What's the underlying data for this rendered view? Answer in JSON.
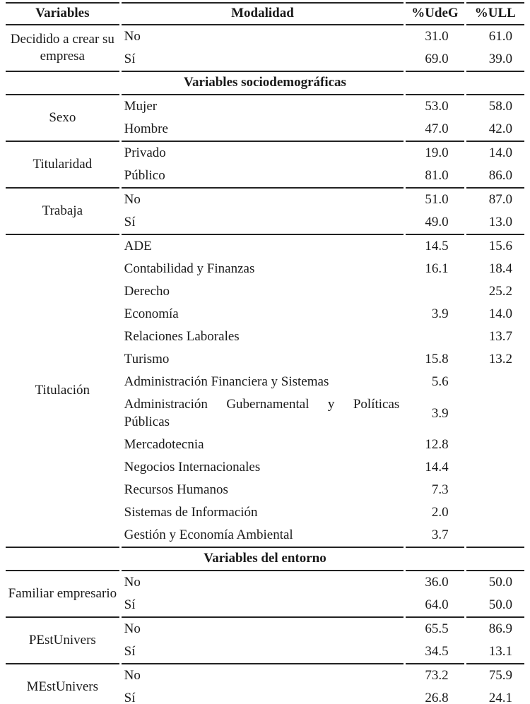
{
  "page": {
    "background": "#ffffff",
    "text_color": "#1a1a1a",
    "rule_color": "#222222"
  },
  "table": {
    "columns": [
      {
        "key": "variables",
        "label": "Variables"
      },
      {
        "key": "modalidad",
        "label": "Modalidad"
      },
      {
        "key": "udeg",
        "label": "%UdeG"
      },
      {
        "key": "ull",
        "label": "%ULL"
      }
    ],
    "sections": [
      {
        "header": null,
        "groups": [
          {
            "variable": "Decidido a crear su empresa",
            "rows": [
              [
                "No",
                "31.0",
                "61.0"
              ],
              [
                "Sí",
                "69.0",
                "39.0"
              ]
            ]
          }
        ]
      },
      {
        "header": "Variables sociodemográficas",
        "groups": [
          {
            "variable": "Sexo",
            "rows": [
              [
                "Mujer",
                "53.0",
                "58.0"
              ],
              [
                "Hombre",
                "47.0",
                "42.0"
              ]
            ]
          },
          {
            "variable": "Titularidad",
            "rows": [
              [
                "Privado",
                "19.0",
                "14.0"
              ],
              [
                "Público",
                "81.0",
                "86.0"
              ]
            ]
          },
          {
            "variable": "Trabaja",
            "rows": [
              [
                "No",
                "51.0",
                "87.0"
              ],
              [
                "Sí",
                "49.0",
                "13.0"
              ]
            ]
          },
          {
            "variable": "Titulación",
            "rows": [
              [
                "ADE",
                "14.5",
                "15.6"
              ],
              [
                "Contabilidad y Finanzas",
                "16.1",
                "18.4"
              ],
              [
                "Derecho",
                "",
                "25.2"
              ],
              [
                "Economía",
                "3.9",
                "14.0"
              ],
              [
                "Relaciones Laborales",
                "",
                "13.7"
              ],
              [
                "Turismo",
                "15.8",
                "13.2"
              ],
              [
                "Administración Financiera y Sistemas",
                "5.6",
                ""
              ],
              [
                "Administración Gubernamental y Políticas Públicas",
                "3.9",
                ""
              ],
              [
                "Mercadotecnia",
                "12.8",
                ""
              ],
              [
                "Negocios Internacionales",
                "14.4",
                ""
              ],
              [
                "Recursos Humanos",
                "7.3",
                ""
              ],
              [
                "Sistemas de Información",
                "2.0",
                ""
              ],
              [
                "Gestión y Economía Ambiental",
                "3.7",
                ""
              ]
            ]
          }
        ]
      },
      {
        "header": "Variables del entorno",
        "groups": [
          {
            "variable": "Familiar empresario",
            "rows": [
              [
                "No",
                "36.0",
                "50.0"
              ],
              [
                "Sí",
                "64.0",
                "50.0"
              ]
            ]
          },
          {
            "variable": "PEstUnivers",
            "rows": [
              [
                "No",
                "65.5",
                "86.9"
              ],
              [
                "Sí",
                "34.5",
                "13.1"
              ]
            ]
          },
          {
            "variable": "MEstUnivers",
            "rows": [
              [
                "No",
                "73.2",
                "75.9"
              ],
              [
                "Sí",
                "26.8",
                "24.1"
              ]
            ]
          }
        ]
      }
    ]
  }
}
